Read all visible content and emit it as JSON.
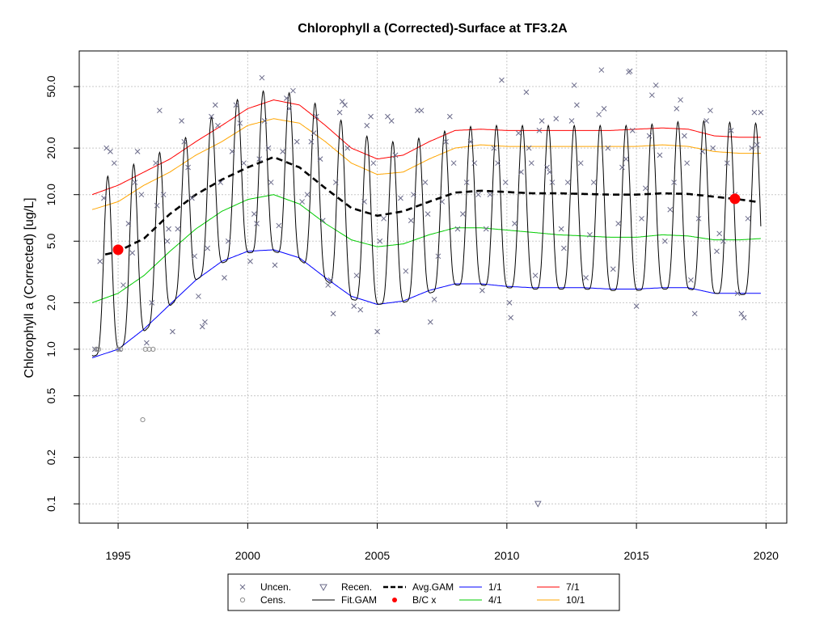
{
  "chart_data": {
    "type": "scatter",
    "title": "Chlorophyll a (Corrected)-Surface at TF3.2A",
    "xlabel": "",
    "ylabel": "Chlorophyll a (Corrected) [ug/L]",
    "y_scale": "log",
    "xlim": [
      1993.5,
      2020.8
    ],
    "ylim": [
      0.075,
      85
    ],
    "x_ticks": [
      1995,
      2000,
      2005,
      2010,
      2015,
      2020
    ],
    "y_ticks": [
      0.1,
      0.2,
      0.5,
      1.0,
      2.0,
      5.0,
      10.0,
      20.0,
      50.0
    ],
    "y_tick_labels": [
      "0.1",
      "0.2",
      "0.5",
      "1.0",
      "2.0",
      "5.0",
      "10.0",
      "20.0",
      "50.0"
    ],
    "grid": true,
    "legend_position": "bottom",
    "legend": [
      {
        "label": "Uncen.",
        "kind": "x-marker",
        "color": "#6b6b8a"
      },
      {
        "label": "Cens.",
        "kind": "circle-marker",
        "color": "#8c8c8c"
      },
      {
        "label": "Recen.",
        "kind": "triangle-marker",
        "color": "#6b6b8a"
      },
      {
        "label": "Fit.GAM",
        "kind": "line",
        "color": "#000000"
      },
      {
        "label": "Avg.GAM",
        "kind": "dashed-line",
        "color": "#000000"
      },
      {
        "label": "B/C x",
        "kind": "dot-marker",
        "color": "#ff0000"
      },
      {
        "label": "1/1",
        "kind": "line",
        "color": "#0000ff"
      },
      {
        "label": "4/1",
        "kind": "line",
        "color": "#00cc00"
      },
      {
        "label": "7/1",
        "kind": "line",
        "color": "#ff0000"
      },
      {
        "label": "10/1",
        "kind": "line",
        "color": "#ffa500"
      }
    ],
    "series": [
      {
        "name": "7/1",
        "color": "#ff0000",
        "style": "solid",
        "x": [
          1994,
          1995,
          1996,
          1997,
          1998,
          1999,
          2000,
          2001,
          2002,
          2003,
          2004,
          2005,
          2006,
          2007,
          2008,
          2009,
          2010,
          2011,
          2012,
          2013,
          2014,
          2015,
          2016,
          2017,
          2018,
          2019,
          2019.8
        ],
        "values": [
          10.0,
          11.5,
          14.0,
          17.0,
          22.0,
          28.0,
          36.0,
          41.0,
          38.0,
          28.0,
          20.0,
          17.0,
          18.0,
          22.0,
          26.0,
          26.5,
          26.0,
          26.0,
          26.0,
          26.0,
          26.0,
          26.5,
          27.0,
          26.5,
          24.0,
          23.5,
          23.5
        ]
      },
      {
        "name": "10/1",
        "color": "#ffa500",
        "style": "solid",
        "x": [
          1994,
          1995,
          1996,
          1997,
          1998,
          1999,
          2000,
          2001,
          2002,
          2003,
          2004,
          2005,
          2006,
          2007,
          2008,
          2009,
          2010,
          2011,
          2012,
          2013,
          2014,
          2015,
          2016,
          2017,
          2018,
          2019,
          2019.8
        ],
        "values": [
          8.0,
          9.0,
          11.5,
          14.0,
          18.0,
          22.0,
          28.0,
          31.0,
          29.0,
          22.0,
          16.0,
          13.5,
          14.0,
          17.0,
          20.0,
          21.0,
          20.5,
          20.5,
          20.5,
          20.5,
          20.5,
          20.5,
          21.0,
          20.5,
          19.0,
          18.5,
          18.5
        ]
      },
      {
        "name": "Avg.GAM",
        "color": "#000000",
        "style": "dashed",
        "x": [
          1994.5,
          1995,
          1996,
          1997,
          1998,
          1999,
          2000,
          2001,
          2002,
          2003,
          2004,
          2005,
          2006,
          2007,
          2008,
          2009,
          2010,
          2011,
          2012,
          2013,
          2014,
          2015,
          2016,
          2017,
          2018,
          2019,
          2019.6
        ],
        "values": [
          4.1,
          4.3,
          5.2,
          7.5,
          10.0,
          12.5,
          15.0,
          17.5,
          15.0,
          11.0,
          8.2,
          7.3,
          7.8,
          9.0,
          10.3,
          10.6,
          10.4,
          10.2,
          10.2,
          10.1,
          10.0,
          10.0,
          10.2,
          10.1,
          9.7,
          9.3,
          9.0
        ]
      },
      {
        "name": "4/1",
        "color": "#00cc00",
        "style": "solid",
        "x": [
          1994,
          1995,
          1996,
          1997,
          1998,
          1999,
          2000,
          2001,
          2002,
          2003,
          2004,
          2005,
          2006,
          2007,
          2008,
          2009,
          2010,
          2011,
          2012,
          2013,
          2014,
          2015,
          2016,
          2017,
          2018,
          2019,
          2019.8
        ],
        "values": [
          2.0,
          2.3,
          3.0,
          4.3,
          6.0,
          7.8,
          9.3,
          10.0,
          8.7,
          6.5,
          5.1,
          4.6,
          4.8,
          5.5,
          6.1,
          6.1,
          5.9,
          5.7,
          5.5,
          5.4,
          5.3,
          5.3,
          5.5,
          5.4,
          5.1,
          5.1,
          5.2
        ]
      },
      {
        "name": "1/1",
        "color": "#0000ff",
        "style": "solid",
        "x": [
          1994,
          1995,
          1996,
          1997,
          1998,
          1999,
          2000,
          2001,
          2002,
          2003,
          2004,
          2005,
          2006,
          2007,
          2008,
          2009,
          2010,
          2011,
          2012,
          2013,
          2014,
          2015,
          2016,
          2017,
          2018,
          2019,
          2019.8
        ],
        "values": [
          0.88,
          1.0,
          1.35,
          1.95,
          2.8,
          3.7,
          4.3,
          4.4,
          3.9,
          2.9,
          2.2,
          1.95,
          2.05,
          2.4,
          2.65,
          2.65,
          2.55,
          2.5,
          2.5,
          2.5,
          2.45,
          2.45,
          2.5,
          2.5,
          2.3,
          2.3,
          2.3
        ]
      },
      {
        "name": "Fit.GAM",
        "color": "#000000",
        "style": "solid",
        "kind": "seasonal",
        "x": [
          1994,
          1995,
          1996,
          1997,
          1998,
          1999,
          2000,
          2001,
          2002,
          2003,
          2004,
          2005,
          2006,
          2007,
          2008,
          2009,
          2010,
          2011,
          2012,
          2013,
          2014,
          2015,
          2016,
          2017,
          2018,
          2019,
          2019.8
        ],
        "peak": [
          12.0,
          14.0,
          17.0,
          20.0,
          26.0,
          36.0,
          45.0,
          48.0,
          44.0,
          36.0,
          27.0,
          22.0,
          22.0,
          24.0,
          27.0,
          28.0,
          28.0,
          28.0,
          28.0,
          28.0,
          28.0,
          28.0,
          29.0,
          30.0,
          30.0,
          29.0,
          29.0
        ],
        "trough": [
          0.9,
          1.0,
          1.3,
          1.9,
          2.8,
          3.6,
          4.2,
          4.3,
          3.8,
          2.8,
          2.1,
          1.95,
          2.0,
          2.3,
          2.6,
          2.6,
          2.5,
          2.45,
          2.45,
          2.45,
          2.4,
          2.4,
          2.45,
          2.45,
          2.3,
          2.25,
          2.3
        ]
      }
    ],
    "uncensored_points": [
      [
        1994.1,
        1.0
      ],
      [
        1994.3,
        3.7
      ],
      [
        1994.45,
        9.5
      ],
      [
        1994.55,
        20
      ],
      [
        1994.7,
        19
      ],
      [
        1994.85,
        16
      ],
      [
        1995.05,
        1.0
      ],
      [
        1995.2,
        2.6
      ],
      [
        1995.4,
        6.5
      ],
      [
        1995.55,
        4.2
      ],
      [
        1995.65,
        12
      ],
      [
        1995.75,
        19
      ],
      [
        1995.9,
        10
      ],
      [
        1996.1,
        1.1
      ],
      [
        1996.3,
        2.0
      ],
      [
        1996.45,
        16
      ],
      [
        1996.5,
        8.5
      ],
      [
        1996.6,
        35
      ],
      [
        1996.75,
        10
      ],
      [
        1996.9,
        5.0
      ],
      [
        1996.95,
        6.0
      ],
      [
        1997.1,
        1.3
      ],
      [
        1997.3,
        6.0
      ],
      [
        1997.45,
        30
      ],
      [
        1997.55,
        22
      ],
      [
        1997.7,
        15
      ],
      [
        1997.85,
        9.5
      ],
      [
        1997.95,
        4.0
      ],
      [
        1998.1,
        2.2
      ],
      [
        1998.25,
        1.4
      ],
      [
        1998.35,
        1.5
      ],
      [
        1998.45,
        4.5
      ],
      [
        1998.6,
        32
      ],
      [
        1998.75,
        38
      ],
      [
        1998.85,
        28
      ],
      [
        1998.95,
        12
      ],
      [
        1999.1,
        2.9
      ],
      [
        1999.25,
        5.0
      ],
      [
        1999.4,
        19
      ],
      [
        1999.55,
        38
      ],
      [
        1999.7,
        29
      ],
      [
        1999.85,
        16
      ],
      [
        2000.1,
        3.7
      ],
      [
        2000.25,
        7.5
      ],
      [
        2000.35,
        6.5
      ],
      [
        2000.45,
        17
      ],
      [
        2000.55,
        57
      ],
      [
        2000.65,
        30
      ],
      [
        2000.8,
        20
      ],
      [
        2000.9,
        12
      ],
      [
        2001.05,
        3.5
      ],
      [
        2001.2,
        6.3
      ],
      [
        2001.35,
        19
      ],
      [
        2001.5,
        42
      ],
      [
        2001.6,
        36
      ],
      [
        2001.75,
        47
      ],
      [
        2001.9,
        22
      ],
      [
        2002.1,
        9.0
      ],
      [
        2002.3,
        10
      ],
      [
        2002.45,
        22
      ],
      [
        2002.55,
        25
      ],
      [
        2002.65,
        32
      ],
      [
        2002.8,
        17
      ],
      [
        2002.9,
        6.8
      ],
      [
        2003.1,
        2.6
      ],
      [
        2003.2,
        2.8
      ],
      [
        2003.3,
        1.7
      ],
      [
        2003.4,
        12
      ],
      [
        2003.55,
        34
      ],
      [
        2003.65,
        40
      ],
      [
        2003.75,
        38
      ],
      [
        2003.85,
        20
      ],
      [
        2004.1,
        1.9
      ],
      [
        2004.2,
        3.0
      ],
      [
        2004.35,
        1.8
      ],
      [
        2004.5,
        9.0
      ],
      [
        2004.6,
        28
      ],
      [
        2004.75,
        32
      ],
      [
        2004.85,
        16
      ],
      [
        2005.0,
        1.3
      ],
      [
        2005.1,
        5.0
      ],
      [
        2005.25,
        7.0
      ],
      [
        2005.4,
        32
      ],
      [
        2005.55,
        30
      ],
      [
        2005.7,
        18
      ],
      [
        2005.9,
        9.5
      ],
      [
        2006.1,
        3.2
      ],
      [
        2006.3,
        6.8
      ],
      [
        2006.4,
        10
      ],
      [
        2006.55,
        35
      ],
      [
        2006.7,
        35
      ],
      [
        2006.85,
        12
      ],
      [
        2006.95,
        7.5
      ],
      [
        2007.05,
        1.5
      ],
      [
        2007.2,
        2.1
      ],
      [
        2007.35,
        4.0
      ],
      [
        2007.5,
        9.0
      ],
      [
        2007.65,
        22
      ],
      [
        2007.8,
        32
      ],
      [
        2007.95,
        16
      ],
      [
        2008.1,
        6.0
      ],
      [
        2008.3,
        7.5
      ],
      [
        2008.45,
        12
      ],
      [
        2008.6,
        22
      ],
      [
        2008.75,
        16
      ],
      [
        2008.9,
        10
      ],
      [
        2009.05,
        2.4
      ],
      [
        2009.2,
        6.0
      ],
      [
        2009.35,
        10
      ],
      [
        2009.5,
        20
      ],
      [
        2009.65,
        16
      ],
      [
        2009.8,
        55
      ],
      [
        2009.95,
        12
      ],
      [
        2010.1,
        2.0
      ],
      [
        2010.15,
        1.6
      ],
      [
        2010.3,
        6.5
      ],
      [
        2010.45,
        25
      ],
      [
        2010.55,
        14
      ],
      [
        2010.75,
        46
      ],
      [
        2010.85,
        20
      ],
      [
        2010.95,
        16
      ],
      [
        2011.1,
        3.0
      ],
      [
        2011.25,
        26
      ],
      [
        2011.35,
        30
      ],
      [
        2011.55,
        15
      ],
      [
        2011.65,
        14
      ],
      [
        2011.75,
        12
      ],
      [
        2011.9,
        31
      ],
      [
        2012.1,
        6.0
      ],
      [
        2012.2,
        4.5
      ],
      [
        2012.35,
        12
      ],
      [
        2012.5,
        30
      ],
      [
        2012.6,
        51
      ],
      [
        2012.7,
        38
      ],
      [
        2012.85,
        16
      ],
      [
        2013.05,
        2.9
      ],
      [
        2013.2,
        5.5
      ],
      [
        2013.35,
        12
      ],
      [
        2013.55,
        33
      ],
      [
        2013.65,
        64
      ],
      [
        2013.75,
        36
      ],
      [
        2013.9,
        20
      ],
      [
        2014.1,
        3.3
      ],
      [
        2014.3,
        6.5
      ],
      [
        2014.45,
        15
      ],
      [
        2014.6,
        17
      ],
      [
        2014.7,
        62
      ],
      [
        2014.75,
        63
      ],
      [
        2014.85,
        26
      ],
      [
        2015.0,
        1.9
      ],
      [
        2015.2,
        7.0
      ],
      [
        2015.35,
        11
      ],
      [
        2015.5,
        24
      ],
      [
        2015.6,
        44
      ],
      [
        2015.75,
        51
      ],
      [
        2015.9,
        18
      ],
      [
        2016.1,
        5.0
      ],
      [
        2016.3,
        8.0
      ],
      [
        2016.45,
        12
      ],
      [
        2016.55,
        36
      ],
      [
        2016.7,
        41
      ],
      [
        2016.85,
        24
      ],
      [
        2016.95,
        16
      ],
      [
        2017.1,
        2.8
      ],
      [
        2017.25,
        1.7
      ],
      [
        2017.4,
        7.0
      ],
      [
        2017.55,
        19
      ],
      [
        2017.7,
        30
      ],
      [
        2017.85,
        35
      ],
      [
        2017.95,
        20
      ],
      [
        2018.1,
        4.3
      ],
      [
        2018.2,
        5.6
      ],
      [
        2018.35,
        5.0
      ],
      [
        2018.5,
        16
      ],
      [
        2018.65,
        26
      ],
      [
        2018.8,
        10
      ],
      [
        2018.9,
        2.3
      ],
      [
        2019.05,
        1.7
      ],
      [
        2019.15,
        1.6
      ],
      [
        2019.3,
        7.0
      ],
      [
        2019.45,
        20
      ],
      [
        2019.55,
        34
      ],
      [
        2019.65,
        21
      ],
      [
        2019.8,
        34
      ]
    ],
    "censored_points": [
      [
        1994.15,
        1.0
      ],
      [
        1994.25,
        1.0
      ],
      [
        1995.0,
        1.0
      ],
      [
        1995.1,
        1.0
      ],
      [
        1995.95,
        0.35
      ],
      [
        1996.05,
        1.0
      ],
      [
        1996.2,
        1.0
      ],
      [
        1996.35,
        1.0
      ]
    ],
    "recensored_points": [
      [
        2011.2,
        0.1
      ]
    ],
    "bc_points": [
      [
        1995.0,
        4.4
      ],
      [
        2018.8,
        9.4
      ]
    ]
  }
}
